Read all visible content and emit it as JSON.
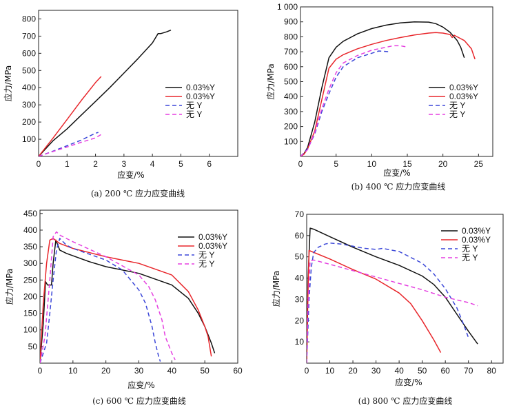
{
  "colors": {
    "black": "#111111",
    "red": "#e8262b",
    "blue": "#3b47d8",
    "magenta": "#e53fe0"
  },
  "chart_data": [
    {
      "type": "line",
      "caption": "(a) 200 ℃ 应力应变曲线",
      "xlabel": "应变/%",
      "ylabel": "应力/MPa",
      "xlim": [
        0,
        7
      ],
      "ylim": [
        0,
        850
      ],
      "xticks": [
        0,
        1,
        2,
        3,
        4,
        5,
        6
      ],
      "xtick_labels": [
        "0",
        "1",
        "2",
        "3",
        "4",
        "5",
        "6"
      ],
      "yticks": [
        100,
        200,
        300,
        400,
        500,
        600,
        700,
        800
      ],
      "ytick_labels": [
        "100",
        "200",
        "300",
        "400",
        "500",
        "600",
        "700",
        "800"
      ],
      "legend": [
        "0.03%Y",
        "0.03%Y",
        "无 Y",
        "无 Y"
      ],
      "series": [
        {
          "name": "0.03%Y",
          "color": "black",
          "dash": false,
          "x": [
            0,
            0.5,
            1,
            1.5,
            2,
            2.5,
            3,
            3.5,
            4,
            4.2,
            4.3,
            4.5,
            4.65
          ],
          "y": [
            0,
            90,
            160,
            240,
            320,
            400,
            485,
            570,
            660,
            715,
            715,
            725,
            735
          ]
        },
        {
          "name": "0.03%Y",
          "color": "red",
          "dash": false,
          "x": [
            0,
            0.5,
            1,
            1.5,
            2,
            2.2
          ],
          "y": [
            0,
            105,
            215,
            325,
            430,
            465
          ]
        },
        {
          "name": "无 Y",
          "color": "blue",
          "dash": true,
          "x": [
            0,
            0.5,
            1,
            1.5,
            2,
            2.1
          ],
          "y": [
            0,
            30,
            62,
            95,
            135,
            140
          ]
        },
        {
          "name": "无 Y",
          "color": "magenta",
          "dash": true,
          "x": [
            0,
            0.5,
            1,
            1.5,
            2,
            2.2
          ],
          "y": [
            0,
            28,
            55,
            82,
            108,
            128
          ]
        }
      ]
    },
    {
      "type": "line",
      "caption": "(b) 400 ℃ 应力应变曲线",
      "xlabel": "应变/%",
      "ylabel": "应力/MPa",
      "xlim": [
        0,
        27
      ],
      "ylim": [
        0,
        1000
      ],
      "xticks": [
        0,
        5,
        10,
        15,
        20,
        25
      ],
      "xtick_labels": [
        "0",
        "5",
        "10",
        "15",
        "20",
        "25"
      ],
      "yticks": [
        100,
        200,
        300,
        400,
        500,
        600,
        700,
        800,
        900,
        1000
      ],
      "ytick_labels": [
        "100",
        "200",
        "300",
        "400",
        "500",
        "600",
        "700",
        "800",
        "900",
        "1 000"
      ],
      "legend": [
        "0.03%Y",
        "0.03%Y",
        "无 Y",
        "无 Y"
      ],
      "series": [
        {
          "name": "0.03%Y",
          "color": "black",
          "dash": false,
          "x": [
            0,
            0.5,
            1,
            2,
            3,
            4,
            5,
            6,
            8,
            10,
            12,
            14,
            16,
            18,
            19,
            20,
            21,
            22,
            22.5,
            23
          ],
          "y": [
            0,
            20,
            60,
            230,
            460,
            660,
            730,
            770,
            820,
            855,
            878,
            893,
            900,
            898,
            888,
            865,
            830,
            775,
            730,
            660
          ]
        },
        {
          "name": "0.03%Y",
          "color": "red",
          "dash": false,
          "x": [
            0,
            0.5,
            1,
            2,
            3,
            4,
            5,
            6,
            8,
            10,
            12,
            14,
            16,
            18,
            19,
            20,
            21,
            21.3,
            21.6,
            22,
            23,
            24,
            24.5
          ],
          "y": [
            0,
            15,
            50,
            170,
            380,
            590,
            650,
            680,
            720,
            750,
            775,
            795,
            812,
            825,
            828,
            825,
            815,
            795,
            810,
            800,
            775,
            720,
            650
          ]
        },
        {
          "name": "无 Y",
          "color": "blue",
          "dash": true,
          "x": [
            0,
            1,
            2,
            3,
            4,
            5,
            6,
            8,
            10,
            11,
            12.5
          ],
          "y": [
            0,
            50,
            150,
            300,
            420,
            530,
            600,
            660,
            690,
            705,
            700
          ]
        },
        {
          "name": "无 Y",
          "color": "magenta",
          "dash": true,
          "x": [
            0,
            1,
            2,
            3,
            4,
            5,
            6,
            8,
            10,
            12,
            13,
            14,
            15
          ],
          "y": [
            0,
            45,
            160,
            320,
            450,
            560,
            625,
            675,
            710,
            730,
            740,
            740,
            732
          ]
        }
      ]
    },
    {
      "type": "line",
      "caption": "(c) 600 ℃ 应力应变曲线",
      "xlabel": "应变/%",
      "ylabel": "应力/MPa",
      "xlim": [
        0,
        60
      ],
      "ylim": [
        0,
        460
      ],
      "xticks": [
        0,
        10,
        20,
        30,
        40,
        50,
        60
      ],
      "xtick_labels": [
        "0",
        "10",
        "20",
        "30",
        "40",
        "50",
        "60"
      ],
      "yticks": [
        50,
        100,
        150,
        200,
        250,
        300,
        350,
        400,
        450
      ],
      "ytick_labels": [
        "50",
        "100",
        "150",
        "200",
        "250",
        "300",
        "350",
        "400",
        "450"
      ],
      "legend": [
        "0.03%Y",
        "0.03%Y",
        "无 Y",
        "无 Y"
      ],
      "series": [
        {
          "name": "0.03%Y",
          "color": "black",
          "dash": false,
          "x": [
            0,
            1,
            1.7,
            2.3,
            3.5,
            4,
            4.8,
            6,
            8,
            15,
            20,
            30,
            40,
            45,
            48,
            50,
            52,
            53
          ],
          "y": [
            0,
            120,
            245,
            235,
            235,
            300,
            370,
            340,
            330,
            305,
            290,
            270,
            235,
            195,
            150,
            110,
            60,
            30
          ]
        },
        {
          "name": "0.03%Y",
          "color": "red",
          "dash": false,
          "x": [
            0,
            1,
            2,
            3,
            4,
            6,
            10,
            20,
            30,
            40,
            45,
            48,
            50,
            51,
            51.5,
            52
          ],
          "y": [
            0,
            180,
            300,
            370,
            375,
            360,
            345,
            320,
            300,
            265,
            215,
            160,
            110,
            80,
            50,
            20
          ]
        },
        {
          "name": "无 Y",
          "color": "blue",
          "dash": true,
          "x": [
            0,
            2,
            3,
            4,
            5,
            6,
            8,
            10,
            20,
            25,
            30,
            32,
            34,
            35,
            36,
            36.5
          ],
          "y": [
            0,
            60,
            150,
            250,
            340,
            375,
            355,
            345,
            310,
            280,
            220,
            180,
            110,
            60,
            20,
            5
          ]
        },
        {
          "name": "无 Y",
          "color": "magenta",
          "dash": true,
          "x": [
            0,
            1.5,
            3,
            4,
            5,
            6,
            8,
            10,
            20,
            30,
            33,
            35,
            37,
            38,
            39,
            40,
            41
          ],
          "y": [
            0,
            80,
            250,
            380,
            395,
            385,
            375,
            365,
            320,
            265,
            230,
            190,
            130,
            80,
            55,
            30,
            10
          ]
        }
      ]
    },
    {
      "type": "line",
      "caption": "(d) 800 ℃ 应力应变曲线",
      "xlabel": "应变/%",
      "ylabel": "应力/MPa",
      "xlim": [
        0,
        85
      ],
      "ylim": [
        0,
        70
      ],
      "xticks": [
        0,
        10,
        20,
        30,
        40,
        50,
        60,
        70,
        80
      ],
      "xtick_labels": [
        "0",
        "10",
        "20",
        "30",
        "40",
        "50",
        "60",
        "70",
        "80"
      ],
      "yticks": [
        10,
        20,
        30,
        40,
        50,
        60,
        70
      ],
      "ytick_labels": [
        "10",
        "20",
        "30",
        "40",
        "50",
        "60",
        "70"
      ],
      "legend": [
        "0.03%Y",
        "0.03%Y",
        "无 Y",
        "无 Y"
      ],
      "series": [
        {
          "name": "0.03%Y",
          "color": "black",
          "dash": false,
          "x": [
            0,
            0.6,
            1.5,
            3,
            10,
            20,
            30,
            40,
            50,
            55,
            60,
            65,
            70,
            74
          ],
          "y": [
            0,
            40,
            63.5,
            63,
            59.5,
            54.5,
            50,
            46,
            41,
            37,
            31,
            23,
            15,
            9
          ]
        },
        {
          "name": "0.03%Y",
          "color": "red",
          "dash": false,
          "x": [
            0,
            0.5,
            1,
            10,
            20,
            30,
            40,
            45,
            50,
            55,
            58
          ],
          "y": [
            0,
            30,
            53,
            49,
            44,
            39.5,
            33,
            28,
            20,
            11,
            5
          ]
        },
        {
          "name": "无 Y",
          "color": "blue",
          "dash": true,
          "x": [
            0,
            1,
            2,
            3,
            5,
            8,
            10,
            15,
            20,
            25,
            30,
            33,
            35,
            40,
            50,
            55,
            60,
            65,
            68,
            70
          ],
          "y": [
            0,
            30,
            45,
            52,
            54.5,
            56,
            56.5,
            56,
            55,
            54,
            53.5,
            54,
            53.5,
            52.5,
            47,
            42,
            35,
            26,
            18,
            12
          ]
        },
        {
          "name": "无 Y",
          "color": "magenta",
          "dash": true,
          "x": [
            0,
            0.5,
            1.5,
            3,
            10,
            20,
            30,
            40,
            50,
            60,
            70,
            74
          ],
          "y": [
            0,
            25,
            48,
            48.5,
            46.5,
            43.5,
            40.5,
            37.5,
            34.5,
            31,
            28.5,
            27
          ]
        }
      ]
    }
  ]
}
